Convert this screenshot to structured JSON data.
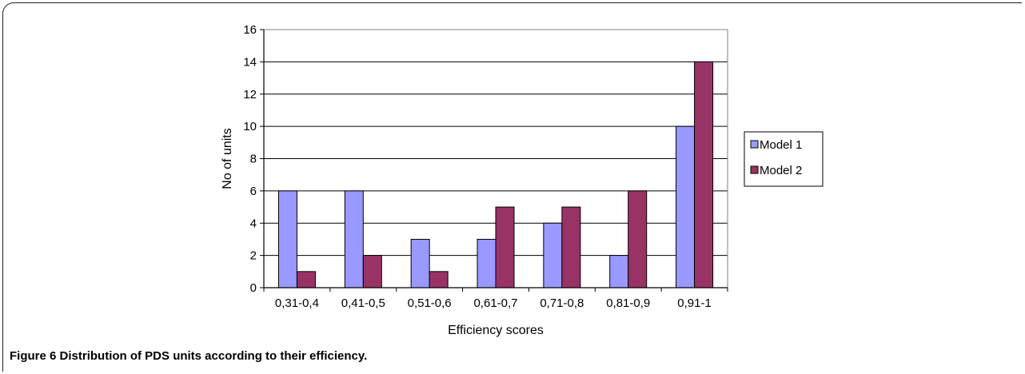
{
  "figure": {
    "label": "Figure 6",
    "caption": "Distribution of PDS units according to their efficiency."
  },
  "chart_data": {
    "type": "bar",
    "categories": [
      "0,31-0,4",
      "0,41-0,5",
      "0,51-0,6",
      "0,61-0,7",
      "0,71-0,8",
      "0,81-0,9",
      "0,91-1"
    ],
    "series": [
      {
        "name": "Model 1",
        "values": [
          6,
          6,
          3,
          3,
          4,
          2,
          10
        ],
        "color": "#9999ff"
      },
      {
        "name": "Model 2",
        "values": [
          1,
          2,
          1,
          5,
          5,
          6,
          14
        ],
        "color": "#993366"
      }
    ],
    "xlabel": "Efficiency scores",
    "ylabel": "No of units",
    "ylim": [
      0,
      16
    ],
    "yticks": [
      0,
      2,
      4,
      6,
      8,
      10,
      12,
      14,
      16
    ],
    "grid": true,
    "legend": "right"
  }
}
